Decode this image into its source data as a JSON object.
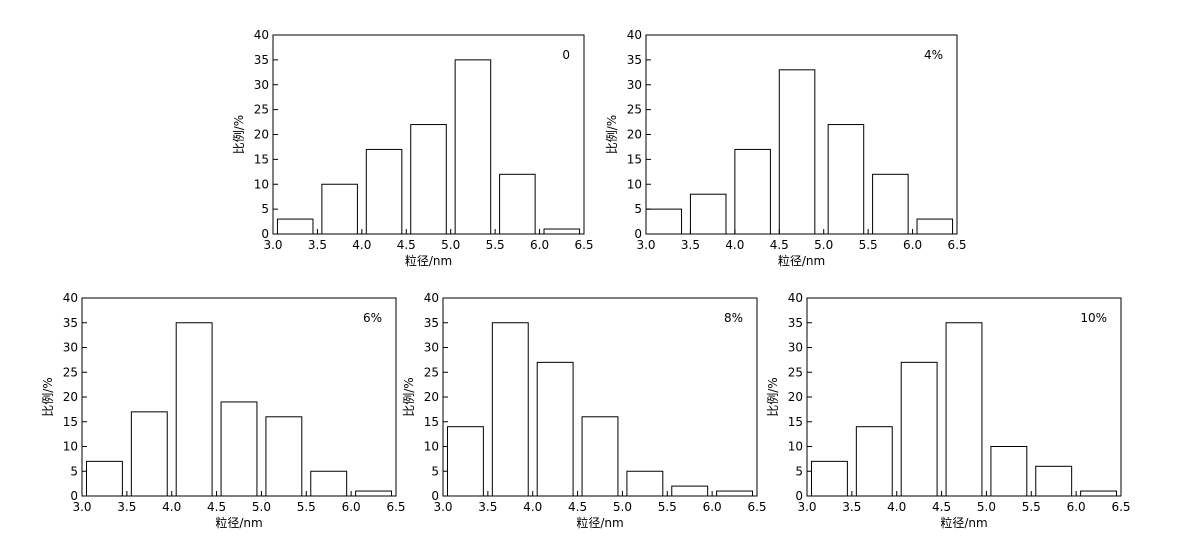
{
  "chart_data": [
    {
      "type": "bar",
      "label": "0",
      "xlabel": "粒径/nm",
      "ylabel": "比例/%",
      "xlim": [
        3.0,
        6.5
      ],
      "ylim": [
        0,
        40
      ],
      "xticks": [
        "3.0",
        "3.5",
        "4.0",
        "4.5",
        "5.0",
        "5.5",
        "6.0",
        "6.5"
      ],
      "yticks": [
        "0",
        "5",
        "10",
        "15",
        "20",
        "25",
        "30",
        "35",
        "40"
      ],
      "bins": [
        [
          3.05,
          3.45
        ],
        [
          3.55,
          3.95
        ],
        [
          4.05,
          4.45
        ],
        [
          4.55,
          4.95
        ],
        [
          5.05,
          5.45
        ],
        [
          5.55,
          5.95
        ],
        [
          6.05,
          6.45
        ]
      ],
      "values": [
        3,
        10,
        17,
        22,
        35,
        12,
        1
      ]
    },
    {
      "type": "bar",
      "label": "4%",
      "xlabel": "粒径/nm",
      "ylabel": "比例/%",
      "xlim": [
        3.0,
        6.5
      ],
      "ylim": [
        0,
        40
      ],
      "xticks": [
        "3.0",
        "3.5",
        "4.0",
        "4.5",
        "5.0",
        "5.5",
        "6.0",
        "6.5"
      ],
      "yticks": [
        "0",
        "5",
        "10",
        "15",
        "20",
        "25",
        "30",
        "35",
        "40"
      ],
      "bins": [
        [
          3.0,
          3.4
        ],
        [
          3.5,
          3.9
        ],
        [
          4.0,
          4.4
        ],
        [
          4.5,
          4.9
        ],
        [
          5.05,
          5.45
        ],
        [
          5.55,
          5.95
        ],
        [
          6.05,
          6.45
        ]
      ],
      "values": [
        5,
        8,
        17,
        33,
        22,
        12,
        3
      ]
    },
    {
      "type": "bar",
      "label": "6%",
      "xlabel": "粒径/nm",
      "ylabel": "比例/%",
      "xlim": [
        3.0,
        6.5
      ],
      "ylim": [
        0,
        40
      ],
      "xticks": [
        "3.0",
        "3.5",
        "4.0",
        "4.5",
        "5.0",
        "5.5",
        "6.0",
        "6.5"
      ],
      "yticks": [
        "0",
        "5",
        "10",
        "15",
        "20",
        "25",
        "30",
        "35",
        "40"
      ],
      "bins": [
        [
          3.05,
          3.45
        ],
        [
          3.55,
          3.95
        ],
        [
          4.05,
          4.45
        ],
        [
          4.55,
          4.95
        ],
        [
          5.05,
          5.45
        ],
        [
          5.55,
          5.95
        ],
        [
          6.05,
          6.45
        ]
      ],
      "values": [
        7,
        17,
        35,
        19,
        16,
        5,
        1
      ]
    },
    {
      "type": "bar",
      "label": "8%",
      "xlabel": "粒径/nm",
      "ylabel": "比例/%",
      "xlim": [
        3.0,
        6.5
      ],
      "ylim": [
        0,
        40
      ],
      "xticks": [
        "3.0",
        "3.5",
        "4.0",
        "4.5",
        "5.0",
        "5.5",
        "6.0",
        "6.5"
      ],
      "yticks": [
        "0",
        "5",
        "10",
        "15",
        "20",
        "25",
        "30",
        "35",
        "40"
      ],
      "bins": [
        [
          3.05,
          3.45
        ],
        [
          3.55,
          3.95
        ],
        [
          4.05,
          4.45
        ],
        [
          4.55,
          4.95
        ],
        [
          5.05,
          5.45
        ],
        [
          5.55,
          5.95
        ],
        [
          6.05,
          6.45
        ]
      ],
      "values": [
        14,
        35,
        27,
        16,
        5,
        2,
        1
      ]
    },
    {
      "type": "bar",
      "label": "10%",
      "xlabel": "粒径/nm",
      "ylabel": "比例/%",
      "xlim": [
        3.0,
        6.5
      ],
      "ylim": [
        0,
        40
      ],
      "xticks": [
        "3.0",
        "3.5",
        "4.0",
        "4.5",
        "5.0",
        "5.5",
        "6.0",
        "6.5"
      ],
      "yticks": [
        "0",
        "5",
        "10",
        "15",
        "20",
        "25",
        "30",
        "35",
        "40"
      ],
      "bins": [
        [
          3.05,
          3.45
        ],
        [
          3.55,
          3.95
        ],
        [
          4.05,
          4.45
        ],
        [
          4.55,
          4.95
        ],
        [
          5.05,
          5.45
        ],
        [
          5.55,
          5.95
        ],
        [
          6.05,
          6.45
        ]
      ],
      "values": [
        7,
        14,
        27,
        35,
        10,
        6,
        1
      ]
    }
  ]
}
